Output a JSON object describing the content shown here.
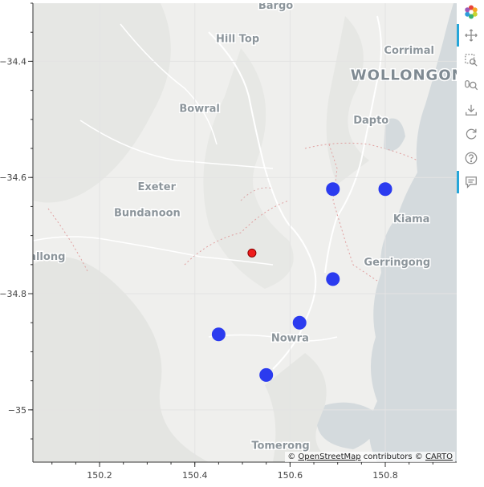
{
  "map": {
    "x_ticks": [
      "150.2",
      "150.4",
      "150.6",
      "150.8"
    ],
    "y_ticks": [
      "−34.4",
      "−34.6",
      "−34.8",
      "−35"
    ],
    "x_range": [
      150.06,
      150.95
    ],
    "y_range": [
      -35.09,
      -34.3
    ],
    "places": [
      {
        "name": "Bargo",
        "lon": 150.57,
        "lat": -34.303,
        "size": 13
      },
      {
        "name": "Hill Top",
        "lon": 150.49,
        "lat": -34.36,
        "size": 13
      },
      {
        "name": "Corrimal",
        "lon": 150.85,
        "lat": -34.38,
        "size": 13
      },
      {
        "name": "WOLLONGONG",
        "lon": 150.86,
        "lat": -34.425,
        "size": 18,
        "big": true
      },
      {
        "name": "Bowral",
        "lon": 150.41,
        "lat": -34.48,
        "size": 13
      },
      {
        "name": "Dapto",
        "lon": 150.77,
        "lat": -34.5,
        "size": 13
      },
      {
        "name": "Exeter",
        "lon": 150.32,
        "lat": -34.615,
        "size": 13
      },
      {
        "name": "Bundanoon",
        "lon": 150.3,
        "lat": -34.66,
        "size": 13
      },
      {
        "name": "Kiama",
        "lon": 150.855,
        "lat": -34.67,
        "size": 13
      },
      {
        "name": "allong",
        "lon": 150.09,
        "lat": -34.735,
        "size": 13
      },
      {
        "name": "Gerringong",
        "lon": 150.825,
        "lat": -34.745,
        "size": 13
      },
      {
        "name": "Nowra",
        "lon": 150.6,
        "lat": -34.875,
        "size": 13
      },
      {
        "name": "Tomerong",
        "lon": 150.58,
        "lat": -35.06,
        "size": 13
      }
    ],
    "points": [
      {
        "lon": 150.69,
        "lat": -34.62,
        "color": "#2b3bef"
      },
      {
        "lon": 150.8,
        "lat": -34.62,
        "color": "#2b3bef"
      },
      {
        "lon": 150.52,
        "lat": -34.73,
        "color": "#ee1c1c",
        "small": true
      },
      {
        "lon": 150.69,
        "lat": -34.775,
        "color": "#2b3bef"
      },
      {
        "lon": 150.62,
        "lat": -34.85,
        "color": "#2b3bef"
      },
      {
        "lon": 150.45,
        "lat": -34.87,
        "color": "#2b3bef"
      },
      {
        "lon": 150.55,
        "lat": -34.94,
        "color": "#2b3bef"
      }
    ]
  },
  "attribution": {
    "prefix": "© ",
    "osm": "OpenStreetMap",
    "mid": " contributors © ",
    "carto": "CARTO"
  },
  "toolbar": {
    "logo": "bokeh-logo-icon",
    "tools": [
      "pan-icon",
      "box-zoom-icon",
      "wheel-zoom-icon",
      "save-icon",
      "reset-icon",
      "help-icon",
      "hover-icon"
    ]
  }
}
